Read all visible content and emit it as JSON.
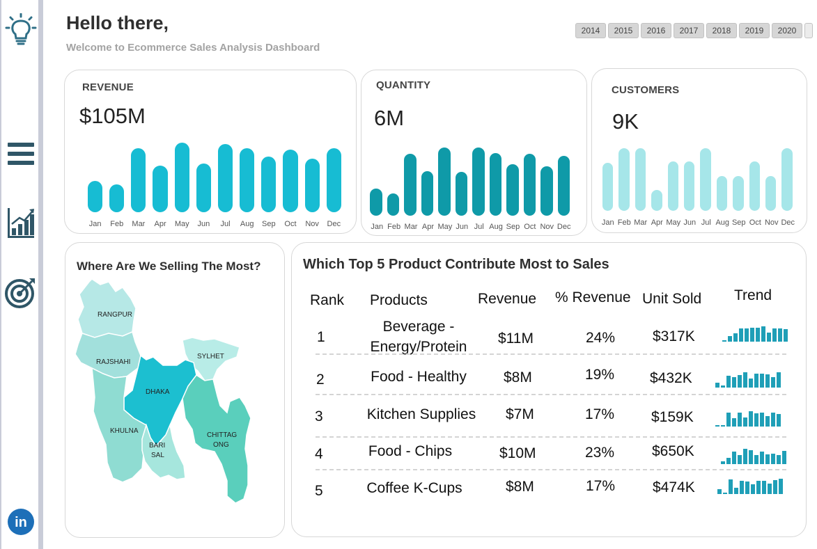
{
  "header": {
    "greeting": "Hello there,",
    "subtitle": "Welcome to Ecommerce Sales Analysis Dashboard"
  },
  "years": [
    "2014",
    "2015",
    "2016",
    "2017",
    "2018",
    "2019",
    "2020"
  ],
  "sidebar": {
    "icons": [
      "lightbulb-icon",
      "menu-icon",
      "chart-icon",
      "target-icon",
      "linkedin-icon"
    ],
    "linkedin_text": "in"
  },
  "colors": {
    "revenue": "#17bcd3",
    "quantity": "#0f9aa8",
    "customers": "#a6e6e9",
    "trend": "#1f9fb7"
  },
  "revenue": {
    "label": "REVENUE",
    "value": "$105M",
    "months": [
      "Jan",
      "Feb",
      "Mar",
      "Apr",
      "May",
      "Jun",
      "Jul",
      "Aug",
      "Sep",
      "Oct",
      "Nov",
      "Dec"
    ],
    "relative_values": [
      0.45,
      0.4,
      0.92,
      0.67,
      1.0,
      0.7,
      0.98,
      0.92,
      0.8,
      0.9,
      0.77,
      0.92
    ]
  },
  "quantity": {
    "label": "QUANTITY",
    "value": "6M",
    "months": [
      "Jan",
      "Feb",
      "Mar",
      "Apr",
      "May",
      "Jun",
      "Jul",
      "Aug",
      "Sep",
      "Oct",
      "Nov",
      "Dec"
    ],
    "relative_values": [
      0.4,
      0.33,
      0.91,
      0.65,
      1.0,
      0.64,
      1.0,
      0.92,
      0.76,
      0.91,
      0.72,
      0.88
    ]
  },
  "customers": {
    "label": "CUSTOMERS",
    "value": "9K",
    "months": [
      "Jan",
      "Feb",
      "Mar",
      "Apr",
      "May",
      "Jun",
      "Jul",
      "Aug",
      "Sep",
      "Oct",
      "Nov",
      "Dec"
    ],
    "relative_values": [
      0.77,
      1.0,
      1.0,
      0.33,
      0.79,
      0.79,
      1.0,
      0.56,
      0.56,
      0.79,
      0.56,
      1.0
    ]
  },
  "map": {
    "title": "Where Are We Selling The Most?",
    "regions": [
      {
        "name": "RANGPUR",
        "color": "#b6e8e6"
      },
      {
        "name": "RAJSHAHI",
        "color": "#a2e0dc"
      },
      {
        "name": "DHAKA",
        "color": "#1cbfd0"
      },
      {
        "name": "SYLHET",
        "color": "#b8ece7"
      },
      {
        "name": "KHULNA",
        "color": "#8fdcd2"
      },
      {
        "name": "BARI",
        "name2": "SAL",
        "color": "#a6e6dd"
      },
      {
        "name": "CHITTAG",
        "name2": "ONG",
        "color": "#5acfbc"
      }
    ]
  },
  "products": {
    "title": "Which Top 5 Product Contribute Most to Sales",
    "headers": {
      "rank": "Rank",
      "product": "Products",
      "revenue": "Revenue",
      "pct": "% Revenue",
      "units": "Unit Sold",
      "trend": "Trend"
    },
    "rows": [
      {
        "rank": "1",
        "product_line1": "Beverage -",
        "product_line2": "Energy/Protein",
        "revenue": "$11M",
        "pct": "24%",
        "units": "$317K",
        "trend": [
          0.1,
          0.35,
          0.55,
          0.85,
          0.85,
          0.9,
          0.9,
          1.0,
          0.6,
          0.85,
          0.85,
          0.8
        ]
      },
      {
        "rank": "2",
        "product_line1": "Food - Healthy",
        "product_line2": "",
        "revenue": "$8M",
        "pct": "19%",
        "units": "$432K",
        "trend": [
          0.3,
          0.15,
          0.75,
          0.7,
          0.8,
          1.0,
          0.6,
          0.9,
          0.9,
          0.85,
          0.7,
          1.0
        ]
      },
      {
        "rank": "3",
        "product_line1": "Kitchen Supplies",
        "product_line2": "",
        "revenue": "$7M",
        "pct": "17%",
        "units": "$159K",
        "trend": [
          0.05,
          0.05,
          0.9,
          0.55,
          0.9,
          0.6,
          1.0,
          0.85,
          0.9,
          0.7,
          0.9,
          0.8
        ]
      },
      {
        "rank": "4",
        "product_line1": "Food - Chips",
        "product_line2": "",
        "revenue": "$10M",
        "pct": "23%",
        "units": "$650K",
        "trend": [
          0.2,
          0.4,
          0.8,
          0.6,
          1.0,
          0.9,
          0.6,
          0.8,
          0.65,
          0.7,
          0.6,
          0.85
        ]
      },
      {
        "rank": "5",
        "product_line1": "Coffee K-Cups",
        "product_line2": "",
        "revenue": "$8M",
        "pct": "17%",
        "units": "$474K",
        "trend": [
          0.3,
          0.05,
          0.95,
          0.4,
          0.85,
          0.8,
          0.65,
          0.85,
          0.85,
          0.7,
          0.9,
          1.0
        ]
      }
    ]
  }
}
